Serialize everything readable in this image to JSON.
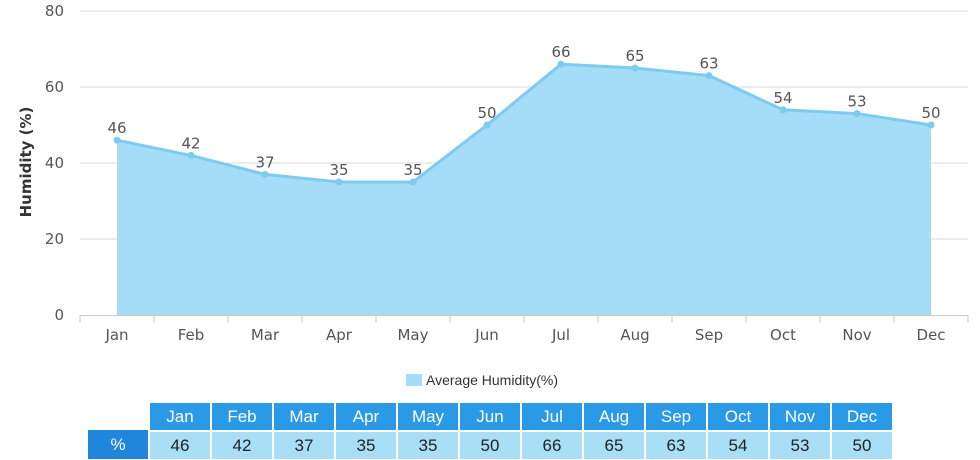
{
  "colors": {
    "area_fill": "#a5dcf7",
    "line": "#7ecbf0",
    "header_bg": "#2a9ae6",
    "value_bg": "#a9def7",
    "rowhead_bg": "#1f86d9"
  },
  "chart_data": {
    "type": "area",
    "categories": [
      "Jan",
      "Feb",
      "Mar",
      "Apr",
      "May",
      "Jun",
      "Jul",
      "Aug",
      "Sep",
      "Oct",
      "Nov",
      "Dec"
    ],
    "series": [
      {
        "name": "Average Humidity(%)",
        "values": [
          46,
          42,
          37,
          35,
          35,
          50,
          66,
          65,
          63,
          54,
          53,
          50
        ]
      }
    ],
    "ylabel": "Humidity (%)",
    "ylim": [
      0,
      80
    ],
    "yticks": [
      0,
      20,
      40,
      60,
      80
    ],
    "grid": true,
    "legend_position": "bottom"
  },
  "legend": {
    "label": "Average Humidity(%)"
  },
  "table": {
    "row_label": "%",
    "months": [
      "Jan",
      "Feb",
      "Mar",
      "Apr",
      "May",
      "Jun",
      "Jul",
      "Aug",
      "Sep",
      "Oct",
      "Nov",
      "Dec"
    ],
    "values": [
      "46",
      "42",
      "37",
      "35",
      "35",
      "50",
      "66",
      "65",
      "63",
      "54",
      "53",
      "50"
    ]
  }
}
